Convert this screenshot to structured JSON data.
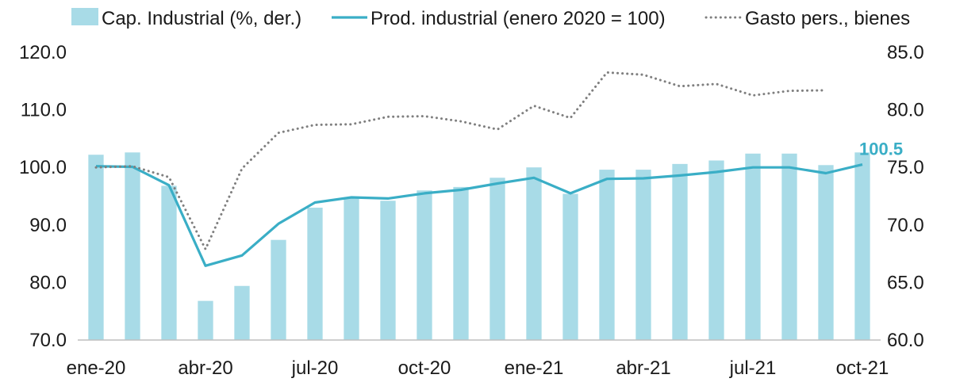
{
  "chart_data": {
    "type": "bar",
    "categories": [
      "ene-20",
      "feb-20",
      "mar-20",
      "abr-20",
      "may-20",
      "jun-20",
      "jul-20",
      "ago-20",
      "sep-20",
      "oct-20",
      "nov-20",
      "dic-20",
      "ene-21",
      "feb-21",
      "mar-21",
      "abr-21",
      "may-21",
      "jun-21",
      "jul-21",
      "ago-21",
      "sep-21",
      "oct-21"
    ],
    "x_tick_labels": [
      "ene-20",
      "abr-20",
      "jul-20",
      "oct-20",
      "ene-21",
      "abr-21",
      "jul-21",
      "oct-21"
    ],
    "x_tick_indices": [
      0,
      3,
      6,
      9,
      12,
      15,
      18,
      21
    ],
    "series": [
      {
        "name": "Cap. Industrial (%, der.)",
        "type": "bar",
        "axis": "right",
        "color": "#a8dbe7",
        "values": [
          76.1,
          76.3,
          73.4,
          63.4,
          64.7,
          68.7,
          71.5,
          72.4,
          72.1,
          73.0,
          73.3,
          74.1,
          75.0,
          72.7,
          74.8,
          74.8,
          75.3,
          75.6,
          76.2,
          76.2,
          75.2,
          76.3
        ]
      },
      {
        "name": "Prod. industrial (enero 2020 = 100)",
        "type": "line",
        "axis": "left",
        "color": "#3aaec6",
        "values": [
          100.2,
          100.1,
          96.9,
          82.9,
          84.7,
          90.2,
          93.9,
          94.8,
          94.6,
          95.5,
          96.1,
          97.2,
          98.2,
          95.5,
          98.0,
          98.1,
          98.6,
          99.2,
          100.0,
          100.0,
          99.0,
          100.5
        ]
      },
      {
        "name": "Gasto pers., bienes",
        "type": "line",
        "axis": "left",
        "style": "dotted",
        "color": "#7f7f7f",
        "values": [
          100.0,
          100.2,
          98.3,
          85.8,
          99.8,
          106.0,
          107.4,
          107.5,
          108.8,
          108.9,
          108.0,
          106.6,
          110.7,
          108.6,
          116.5,
          116.1,
          114.1,
          114.5,
          112.5,
          113.3,
          113.4,
          null
        ]
      }
    ],
    "left_axis": {
      "ylim": [
        70,
        120
      ],
      "ticks": [
        "70.0",
        "80.0",
        "90.0",
        "100.0",
        "110.0",
        "120.0"
      ]
    },
    "right_axis": {
      "ylim": [
        60,
        85
      ],
      "ticks": [
        "60.0",
        "65.0",
        "70.0",
        "75.0",
        "80.0",
        "85.0"
      ]
    },
    "last_value_label": "100.5",
    "legend_position": "top",
    "grid": false
  }
}
